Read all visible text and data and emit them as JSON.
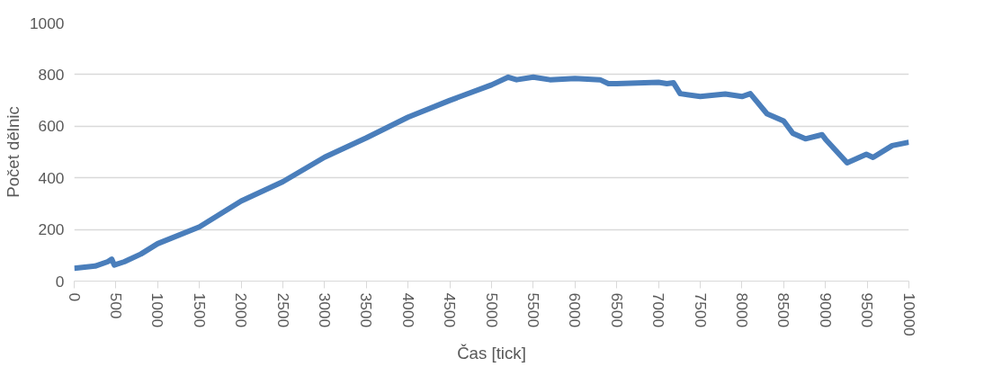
{
  "chart_data": {
    "type": "line",
    "xlabel": "Čas [tick]",
    "ylabel": "Počet dělnic",
    "xlim": [
      0,
      10000
    ],
    "ylim": [
      0,
      1000
    ],
    "xticks": [
      0,
      500,
      1000,
      1500,
      2000,
      2500,
      3000,
      3500,
      4000,
      4500,
      5000,
      5500,
      6000,
      6500,
      7000,
      7500,
      8000,
      8500,
      9000,
      9500,
      10000
    ],
    "yticks": [
      0,
      200,
      400,
      600,
      800,
      1000
    ],
    "grid": "y",
    "marker": "none",
    "line_style": "solid",
    "x": [
      0,
      250,
      400,
      450,
      480,
      600,
      800,
      1000,
      1500,
      2000,
      2500,
      3000,
      3500,
      4000,
      4500,
      5000,
      5200,
      5300,
      5500,
      5700,
      6000,
      6300,
      6400,
      6500,
      7000,
      7100,
      7180,
      7260,
      7500,
      7800,
      8000,
      8100,
      8300,
      8500,
      8610,
      8760,
      8960,
      9000,
      9260,
      9490,
      9570,
      9800,
      10000
    ],
    "series": [
      {
        "color": "#4a7ebb",
        "values": [
          50,
          58,
          75,
          85,
          62,
          75,
          105,
          145,
          210,
          310,
          385,
          480,
          555,
          635,
          700,
          760,
          790,
          780,
          790,
          780,
          785,
          780,
          765,
          765,
          770,
          765,
          768,
          726,
          715,
          725,
          715,
          726,
          648,
          620,
          572,
          551,
          567,
          550,
          458,
          491,
          479,
          525,
          538
        ]
      }
    ]
  }
}
